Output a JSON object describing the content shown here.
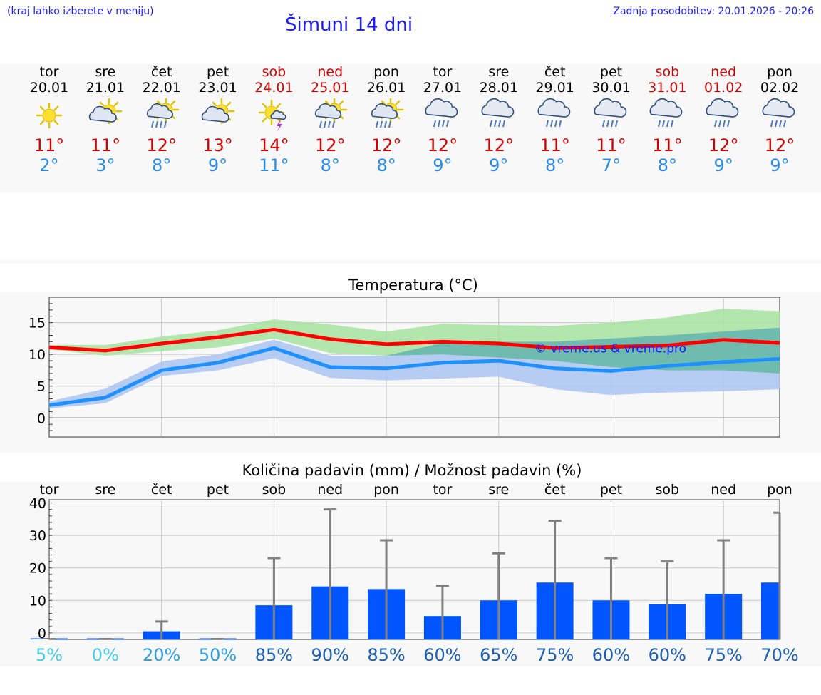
{
  "header": {
    "hint": "(kraj lahko izberete v meniju)",
    "title": "Šimuni 14 dni",
    "last_update": "Zadnja posodobitev: 20.01.2026 - 20:26"
  },
  "days": [
    {
      "name": "tor",
      "date": "20.01",
      "weekend": false,
      "icon": "sun-icon",
      "tmax": "11°",
      "tmin": "2°"
    },
    {
      "name": "sre",
      "date": "21.01",
      "weekend": false,
      "icon": "sun-cloud-icon",
      "tmax": "11°",
      "tmin": "3°"
    },
    {
      "name": "čet",
      "date": "22.01",
      "weekend": false,
      "icon": "sun-cloud-rain-icon",
      "tmax": "12°",
      "tmin": "8°"
    },
    {
      "name": "pet",
      "date": "23.01",
      "weekend": false,
      "icon": "sun-cloud-icon",
      "tmax": "13°",
      "tmin": "9°"
    },
    {
      "name": "sob",
      "date": "24.01",
      "weekend": true,
      "icon": "sun-thunder-icon",
      "tmax": "14°",
      "tmin": "11°"
    },
    {
      "name": "ned",
      "date": "25.01",
      "weekend": true,
      "icon": "sun-cloud-rain-icon",
      "tmax": "12°",
      "tmin": "8°"
    },
    {
      "name": "pon",
      "date": "26.01",
      "weekend": false,
      "icon": "sun-cloud-rain-icon",
      "tmax": "12°",
      "tmin": "8°"
    },
    {
      "name": "tor",
      "date": "27.01",
      "weekend": false,
      "icon": "cloud-rain-icon",
      "tmax": "12°",
      "tmin": "9°"
    },
    {
      "name": "sre",
      "date": "28.01",
      "weekend": false,
      "icon": "cloud-rain-icon",
      "tmax": "12°",
      "tmin": "9°"
    },
    {
      "name": "čet",
      "date": "29.01",
      "weekend": false,
      "icon": "cloud-rain-icon",
      "tmax": "11°",
      "tmin": "8°"
    },
    {
      "name": "pet",
      "date": "30.01",
      "weekend": false,
      "icon": "cloud-rain-icon",
      "tmax": "11°",
      "tmin": "7°"
    },
    {
      "name": "sob",
      "date": "31.01",
      "weekend": true,
      "icon": "cloud-rain-icon",
      "tmax": "11°",
      "tmin": "8°"
    },
    {
      "name": "ned",
      "date": "01.02",
      "weekend": true,
      "icon": "cloud-rain-icon",
      "tmax": "12°",
      "tmin": "9°"
    },
    {
      "name": "pon",
      "date": "02.02",
      "weekend": false,
      "icon": "cloud-rain-icon",
      "tmax": "12°",
      "tmin": "9°"
    }
  ],
  "colors": {
    "weekend": "#d00000",
    "tmax": "#d00000",
    "tmin": "#2a8be8",
    "max_band": "#a6e3a0",
    "min_band": "#aac4f2",
    "overlap": "#5bb59a",
    "precip_bar": "#0055ff",
    "error_bar": "#808080"
  },
  "chart_data": [
    {
      "type": "line",
      "title": "Temperatura (°C)",
      "watermark": "© vreme.us & vreme.pro",
      "x": [
        0,
        1,
        2,
        3,
        4,
        5,
        6,
        7,
        8,
        9,
        10,
        11,
        12,
        13
      ],
      "ylim": [
        -3,
        19
      ],
      "yticks": [
        0,
        5,
        10,
        15
      ],
      "series": [
        {
          "name": "max",
          "color": "#ff0000",
          "values": [
            11.1,
            10.6,
            11.7,
            12.7,
            13.9,
            12.4,
            11.6,
            12.0,
            11.7,
            11.0,
            11.2,
            11.4,
            12.3,
            11.8
          ],
          "band_low": [
            10.8,
            9.8,
            10.5,
            11.1,
            12.5,
            10.2,
            9.8,
            10.0,
            9.5,
            9.0,
            8.0,
            7.5,
            7.5,
            7.0
          ],
          "band_high": [
            11.5,
            11.5,
            12.8,
            13.8,
            15.5,
            14.7,
            13.6,
            14.8,
            14.6,
            14.5,
            15.0,
            15.8,
            17.2,
            16.8
          ]
        },
        {
          "name": "min",
          "color": "#1e90ff",
          "values": [
            2.0,
            3.2,
            7.5,
            8.7,
            11.0,
            8.0,
            7.8,
            8.7,
            9.0,
            7.8,
            7.4,
            8.2,
            8.8,
            9.3
          ],
          "band_low": [
            1.5,
            2.3,
            6.6,
            7.5,
            9.4,
            6.3,
            5.9,
            6.2,
            6.5,
            4.5,
            3.6,
            4.0,
            4.2,
            4.5
          ],
          "band_high": [
            2.6,
            4.6,
            8.9,
            10.0,
            12.3,
            9.8,
            9.8,
            11.8,
            12.0,
            12.0,
            12.5,
            13.0,
            13.6,
            14.2
          ]
        }
      ]
    },
    {
      "type": "bar",
      "title": "Količina padavin (mm) / Možnost padavin (%)",
      "categories": [
        "tor",
        "sre",
        "čet",
        "pet",
        "sob",
        "ned",
        "pon",
        "tor",
        "sre",
        "čet",
        "pet",
        "sob",
        "ned",
        "pon"
      ],
      "values": [
        0.0,
        0.0,
        0.5,
        0.0,
        8.5,
        14.3,
        13.5,
        5.2,
        10.0,
        15.5,
        10.0,
        8.8,
        12.0,
        15.5
      ],
      "error_high": [
        0.0,
        0.0,
        3.5,
        0.0,
        23.0,
        38.0,
        28.5,
        14.5,
        24.5,
        34.5,
        23.0,
        22.0,
        28.5,
        37.0
      ],
      "chance": [
        "5%",
        "0%",
        "20%",
        "50%",
        "85%",
        "90%",
        "85%",
        "60%",
        "65%",
        "75%",
        "60%",
        "60%",
        "75%",
        "70%"
      ],
      "ylim": [
        -2,
        41
      ],
      "yticks": [
        0,
        10,
        20,
        30,
        40
      ]
    }
  ]
}
